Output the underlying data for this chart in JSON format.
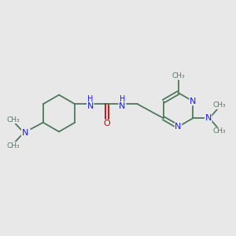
{
  "background_color": "#e8e8e8",
  "bond_color": "#4a7a5a",
  "nitrogen_color": "#1a1aff",
  "oxygen_color": "#cc0000",
  "figsize": [
    3.0,
    3.0
  ],
  "dpi": 100,
  "xlim": [
    0,
    10
  ],
  "ylim": [
    0,
    10
  ]
}
